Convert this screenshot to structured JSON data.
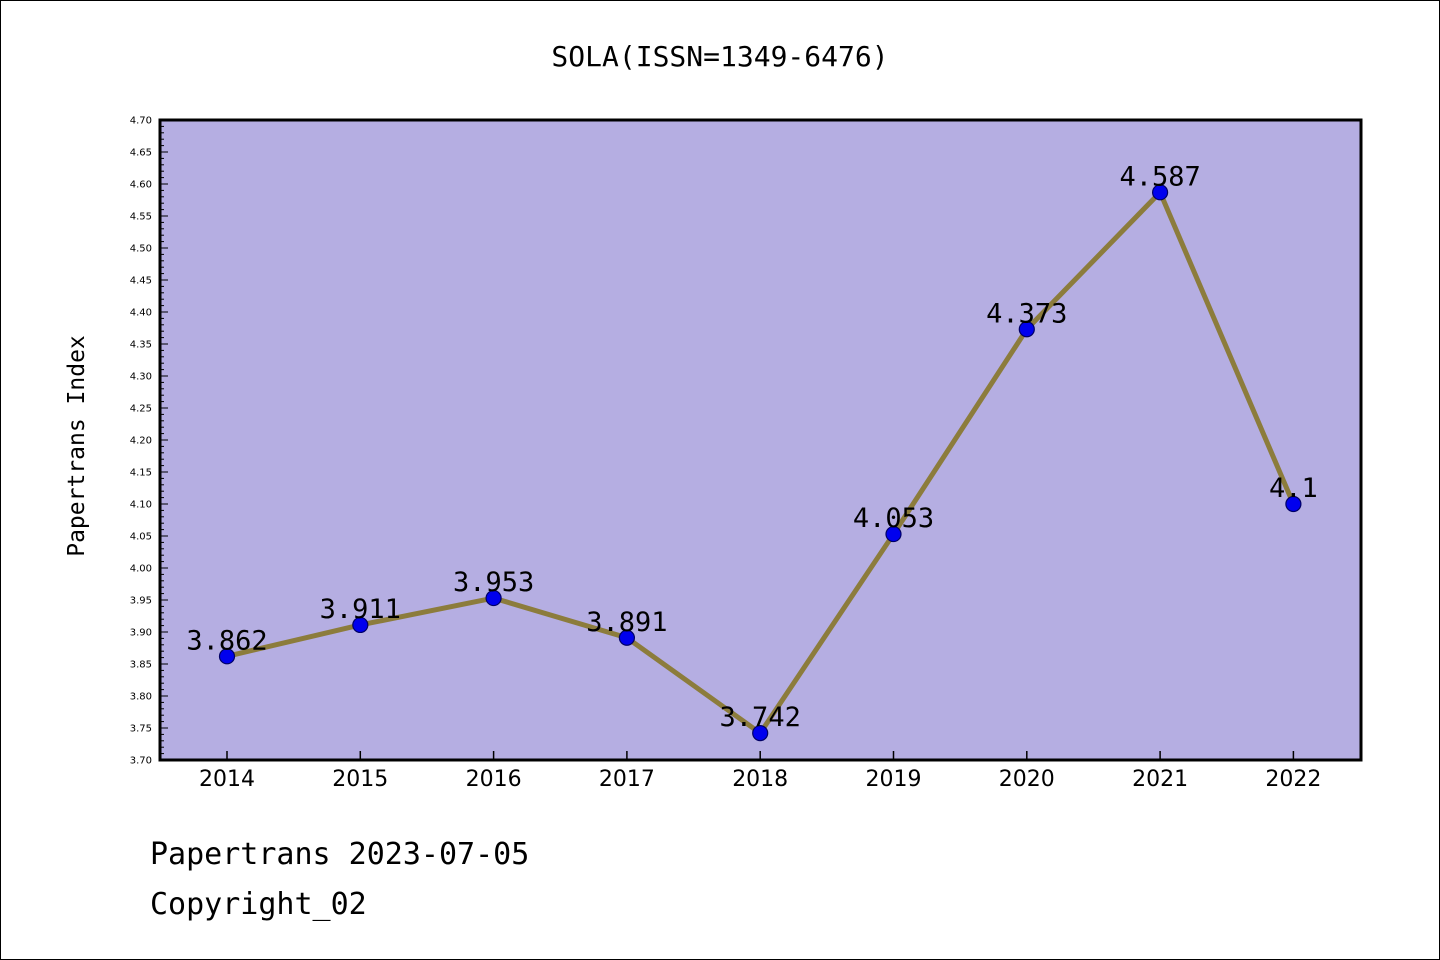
{
  "chart_data": {
    "type": "line",
    "title": "SOLA(ISSN=1349-6476)",
    "xlabel": "",
    "ylabel": "Papertrans Index",
    "categories": [
      "2014",
      "2015",
      "2016",
      "2017",
      "2018",
      "2019",
      "2020",
      "2021",
      "2022"
    ],
    "values": [
      3.862,
      3.911,
      3.953,
      3.891,
      3.742,
      4.053,
      4.373,
      4.587,
      4.1
    ],
    "data_labels": [
      "3.862",
      "3.911",
      "3.953",
      "3.891",
      "3.742",
      "4.053",
      "4.373",
      "4.587",
      "4.1"
    ],
    "ylim": [
      3.7,
      4.7
    ],
    "yticks": [
      "3.70",
      "3.75",
      "3.80",
      "3.85",
      "3.90",
      "3.95",
      "4.00",
      "4.05",
      "4.10",
      "4.15",
      "4.20",
      "4.25",
      "4.30",
      "4.35",
      "4.40",
      "4.45",
      "4.50",
      "4.55",
      "4.60",
      "4.65",
      "4.70"
    ],
    "grid": false,
    "legend": "none",
    "colors": {
      "plot_background": "#b5aee2",
      "line": "#8c7c3c",
      "marker": "#0000ee",
      "marker_edge": "#000066",
      "axis": "#000000",
      "frame": "#000000"
    }
  },
  "footer": {
    "line1": "Papertrans 2023-07-05",
    "line2": "Copyright_02"
  }
}
